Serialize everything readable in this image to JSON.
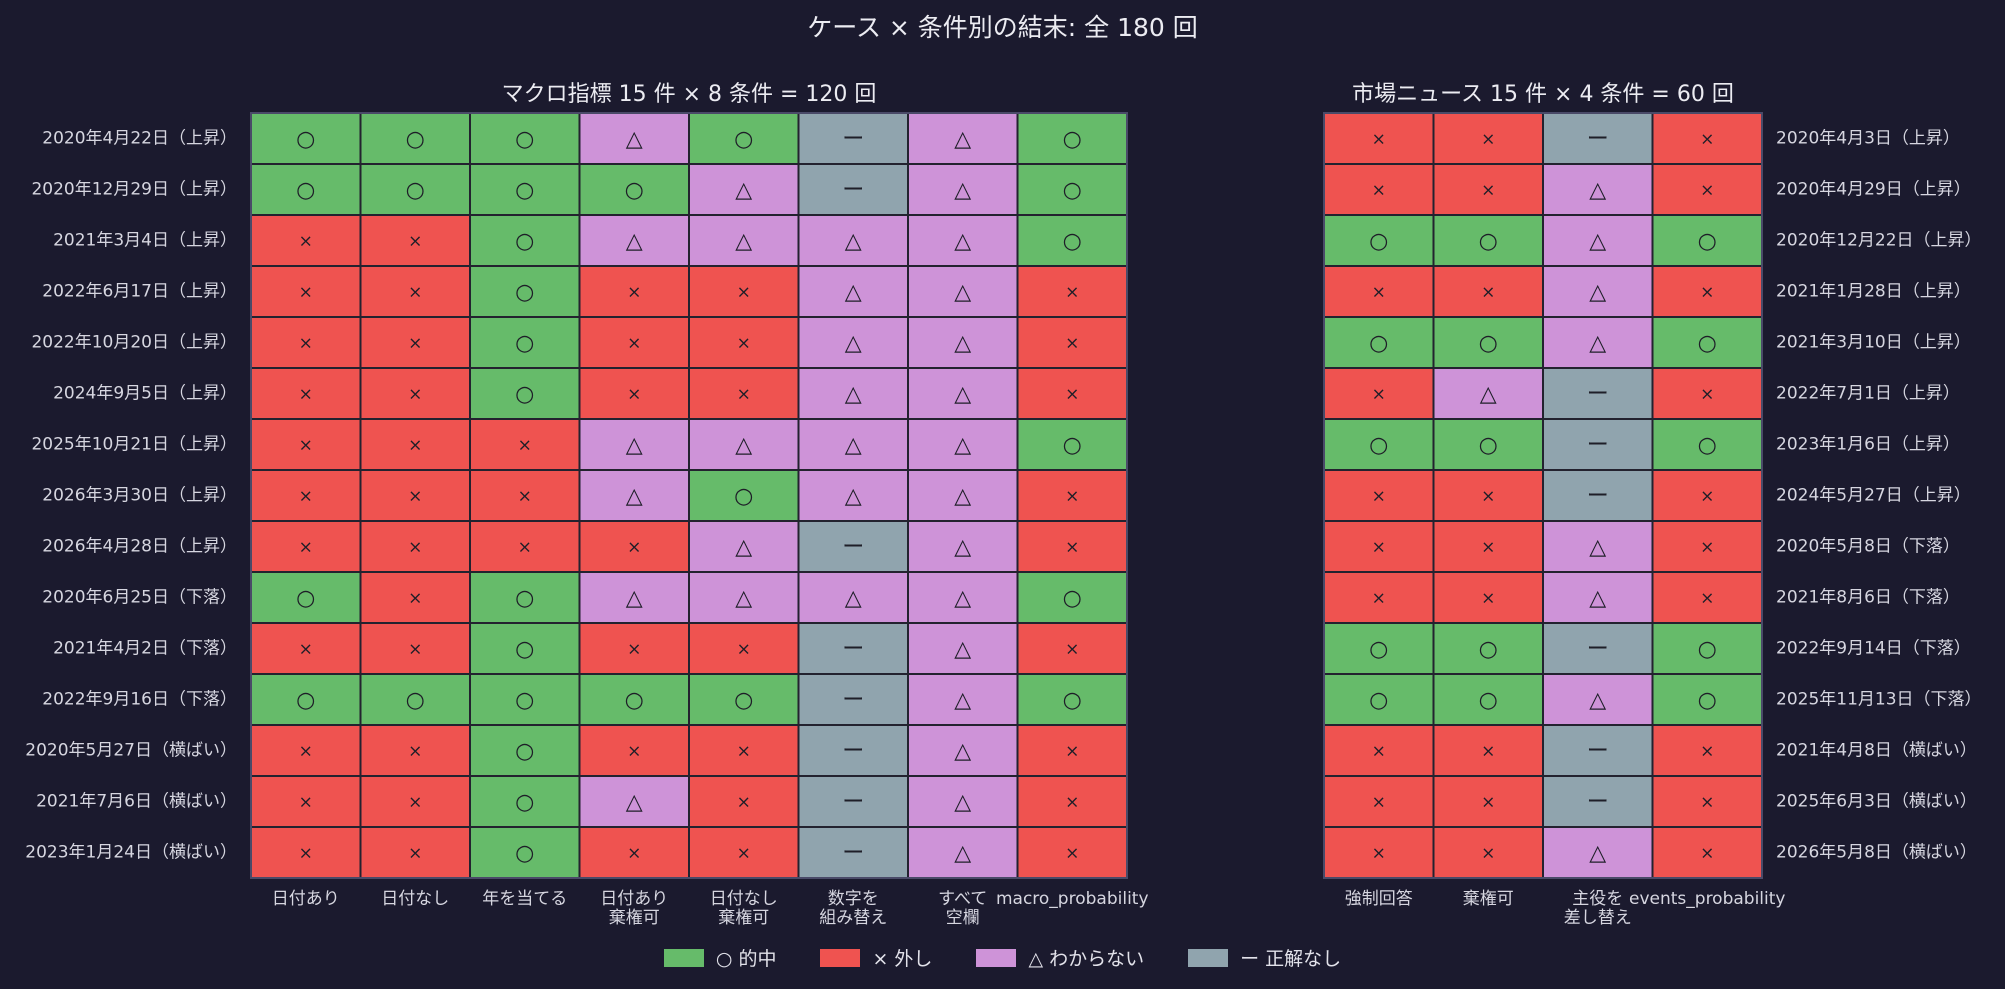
{
  "title": "ケース × 条件別の結末: 全 180 回",
  "legend": [
    {
      "key": "hit",
      "label": "○ 的中"
    },
    {
      "key": "miss",
      "label": "× 外し"
    },
    {
      "key": "unknown",
      "label": "△ わからない"
    },
    {
      "key": "none",
      "label": "ー 正解なし"
    }
  ],
  "colors": {
    "hit": "#66bb6a",
    "miss": "#ef5350",
    "unknown": "#ce93d8",
    "none": "#90a4ae",
    "grid": "#23222f",
    "frame": "#4a4a68"
  },
  "symbols": {
    "hit": "○",
    "miss": "×",
    "unknown": "△",
    "none": "ー"
  },
  "chart_data": [
    {
      "type": "heatmap",
      "title": "マクロ指標 15 件 × 8 条件 = 120 回",
      "columns": [
        "日付あり",
        "日付なし",
        "年を当てる",
        "日付あり\n棄権可",
        "日付なし\n棄権可",
        "数字を\n組み替え",
        "すべて\n空欄",
        "macro_probability"
      ],
      "rows": [
        "2020年4月22日（上昇）",
        "2020年12月29日（上昇）",
        "2021年3月4日（上昇）",
        "2022年6月17日（上昇）",
        "2022年10月20日（上昇）",
        "2024年9月5日（上昇）",
        "2025年10月21日（上昇）",
        "2026年3月30日（上昇）",
        "2026年4月28日（上昇）",
        "2020年6月25日（下落）",
        "2021年4月2日（下落）",
        "2022年9月16日（下落）",
        "2020年5月27日（横ばい）",
        "2021年7月6日（横ばい）",
        "2023年1月24日（横ばい）"
      ],
      "values": [
        [
          "hit",
          "hit",
          "hit",
          "unknown",
          "hit",
          "none",
          "unknown",
          "hit"
        ],
        [
          "hit",
          "hit",
          "hit",
          "hit",
          "unknown",
          "none",
          "unknown",
          "hit"
        ],
        [
          "miss",
          "miss",
          "hit",
          "unknown",
          "unknown",
          "unknown",
          "unknown",
          "hit"
        ],
        [
          "miss",
          "miss",
          "hit",
          "miss",
          "miss",
          "unknown",
          "unknown",
          "miss"
        ],
        [
          "miss",
          "miss",
          "hit",
          "miss",
          "miss",
          "unknown",
          "unknown",
          "miss"
        ],
        [
          "miss",
          "miss",
          "hit",
          "miss",
          "miss",
          "unknown",
          "unknown",
          "miss"
        ],
        [
          "miss",
          "miss",
          "miss",
          "unknown",
          "unknown",
          "unknown",
          "unknown",
          "hit"
        ],
        [
          "miss",
          "miss",
          "miss",
          "unknown",
          "hit",
          "unknown",
          "unknown",
          "miss"
        ],
        [
          "miss",
          "miss",
          "miss",
          "miss",
          "unknown",
          "none",
          "unknown",
          "miss"
        ],
        [
          "hit",
          "miss",
          "hit",
          "unknown",
          "unknown",
          "unknown",
          "unknown",
          "hit"
        ],
        [
          "miss",
          "miss",
          "hit",
          "miss",
          "miss",
          "none",
          "unknown",
          "miss"
        ],
        [
          "hit",
          "hit",
          "hit",
          "hit",
          "hit",
          "none",
          "unknown",
          "hit"
        ],
        [
          "miss",
          "miss",
          "hit",
          "miss",
          "miss",
          "none",
          "unknown",
          "miss"
        ],
        [
          "miss",
          "miss",
          "hit",
          "unknown",
          "miss",
          "none",
          "unknown",
          "miss"
        ],
        [
          "miss",
          "miss",
          "hit",
          "miss",
          "miss",
          "none",
          "unknown",
          "miss"
        ]
      ]
    },
    {
      "type": "heatmap",
      "title": "市場ニュース 15 件 × 4 条件 = 60 回",
      "columns": [
        "強制回答",
        "棄権可",
        "主役を\n差し替え",
        "events_probability"
      ],
      "rows": [
        "2020年4月3日（上昇）",
        "2020年4月29日（上昇）",
        "2020年12月22日（上昇）",
        "2021年1月28日（上昇）",
        "2021年3月10日（上昇）",
        "2022年7月1日（上昇）",
        "2023年1月6日（上昇）",
        "2024年5月27日（上昇）",
        "2020年5月8日（下落）",
        "2021年8月6日（下落）",
        "2022年9月14日（下落）",
        "2025年11月13日（下落）",
        "2021年4月8日（横ばい）",
        "2025年6月3日（横ばい）",
        "2026年5月8日（横ばい）"
      ],
      "values": [
        [
          "miss",
          "miss",
          "none",
          "miss"
        ],
        [
          "miss",
          "miss",
          "unknown",
          "miss"
        ],
        [
          "hit",
          "hit",
          "unknown",
          "hit"
        ],
        [
          "miss",
          "miss",
          "unknown",
          "miss"
        ],
        [
          "hit",
          "hit",
          "unknown",
          "hit"
        ],
        [
          "miss",
          "unknown",
          "none",
          "miss"
        ],
        [
          "hit",
          "hit",
          "none",
          "hit"
        ],
        [
          "miss",
          "miss",
          "none",
          "miss"
        ],
        [
          "miss",
          "miss",
          "unknown",
          "miss"
        ],
        [
          "miss",
          "miss",
          "unknown",
          "miss"
        ],
        [
          "hit",
          "hit",
          "none",
          "hit"
        ],
        [
          "hit",
          "hit",
          "unknown",
          "hit"
        ],
        [
          "miss",
          "miss",
          "none",
          "miss"
        ],
        [
          "miss",
          "miss",
          "none",
          "miss"
        ],
        [
          "miss",
          "miss",
          "unknown",
          "miss"
        ]
      ]
    }
  ]
}
